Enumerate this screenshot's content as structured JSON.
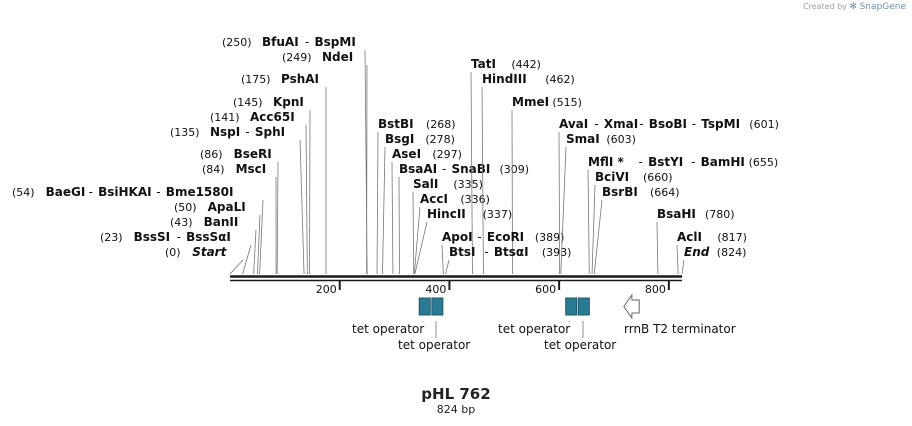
{
  "credit": {
    "prefix": "Created by",
    "brand": "SnapGene"
  },
  "plasmid": {
    "name": "pHL 762",
    "length_label": "824 bp"
  },
  "scale": {
    "length": 824,
    "ticks": [
      200,
      400,
      600,
      800
    ]
  },
  "enzyme_rows": [
    {
      "pos_label": "(250)",
      "sites": [
        250,
        249
      ],
      "names": [
        "BfuAI",
        "BspMI"
      ],
      "italic": false
    },
    {
      "pos_label": "(249)",
      "sites": [
        249
      ],
      "names": [
        "NdeI"
      ],
      "italic": false
    },
    {
      "pos_label": "(175)",
      "sites": [
        175
      ],
      "names": [
        "PshAI"
      ],
      "italic": false
    },
    {
      "pos_label": "(145)",
      "sites": [
        145
      ],
      "names": [
        "KpnI"
      ],
      "italic": false
    },
    {
      "pos_label": "(141)",
      "sites": [
        141
      ],
      "names": [
        "Acc65I"
      ],
      "italic": false
    },
    {
      "pos_label": "(135)",
      "sites": [
        135
      ],
      "names": [
        "NspI",
        "SphI"
      ],
      "italic": false
    },
    {
      "pos_label": "(86)",
      "sites": [
        86
      ],
      "names": [
        "BseRI"
      ],
      "italic": false
    },
    {
      "pos_label": "(84)",
      "sites": [
        84
      ],
      "names": [
        "MscI"
      ],
      "italic": false
    },
    {
      "pos_label": "(54)",
      "sites": [
        54
      ],
      "names": [
        "BaeGI",
        "BsiHKAI",
        "Bme1580I"
      ],
      "italic": false
    },
    {
      "pos_label": "(50)",
      "sites": [
        50
      ],
      "names": [
        "ApaLI"
      ],
      "italic": false
    },
    {
      "pos_label": "(43)",
      "sites": [
        43
      ],
      "names": [
        "BanII"
      ],
      "italic": false
    },
    {
      "pos_label": "(23)",
      "sites": [
        23
      ],
      "names": [
        "BssSI",
        "BssSαI"
      ],
      "italic": false
    },
    {
      "pos_label": "(0)",
      "sites": [
        0
      ],
      "names": [
        "Start"
      ],
      "italic": true
    },
    {
      "pos_label": "(268)",
      "sites": [
        268
      ],
      "names": [
        "BstBI"
      ],
      "italic": false
    },
    {
      "pos_label": "(278)",
      "sites": [
        278
      ],
      "names": [
        "BsgI"
      ],
      "italic": false
    },
    {
      "pos_label": "(297)",
      "sites": [
        297
      ],
      "names": [
        "AseI"
      ],
      "italic": false
    },
    {
      "pos_label": "(309)",
      "sites": [
        309
      ],
      "names": [
        "BsaAI",
        "SnaBI"
      ],
      "italic": false
    },
    {
      "pos_label": "(335)",
      "sites": [
        335
      ],
      "names": [
        "SalI"
      ],
      "italic": false
    },
    {
      "pos_label": "(336)",
      "sites": [
        336
      ],
      "names": [
        "AccI"
      ],
      "italic": false
    },
    {
      "pos_label": "(337)",
      "sites": [
        337
      ],
      "names": [
        "HincII"
      ],
      "italic": false
    },
    {
      "pos_label": "(442)",
      "sites": [
        442
      ],
      "names": [
        "TatI"
      ],
      "italic": false
    },
    {
      "pos_label": "(462)",
      "sites": [
        462
      ],
      "names": [
        "HindIII"
      ],
      "italic": false
    },
    {
      "pos_label": "(515)",
      "sites": [
        515
      ],
      "names": [
        "MmeI"
      ],
      "italic": false
    },
    {
      "pos_label": "(389)",
      "sites": [
        389
      ],
      "names": [
        "ApoI",
        "EcoRI"
      ],
      "italic": false
    },
    {
      "pos_label": "(393)",
      "sites": [
        393
      ],
      "names": [
        "BtsI",
        "BtsαI"
      ],
      "italic": false
    },
    {
      "pos_label": "(601)",
      "sites": [
        601
      ],
      "names": [
        "AvaI",
        "XmaI",
        "BsoBI",
        "TspMI"
      ],
      "italic": false
    },
    {
      "pos_label": "(603)",
      "sites": [
        603
      ],
      "names": [
        "SmaI"
      ],
      "italic": false
    },
    {
      "pos_label": "(655)",
      "sites": [
        655
      ],
      "names": [
        "MflI *",
        "BstYI",
        "BamHI"
      ],
      "italic": false
    },
    {
      "pos_label": "(660)",
      "sites": [
        660
      ],
      "names": [
        "BciVI"
      ],
      "italic": false
    },
    {
      "pos_label": "(664)",
      "sites": [
        664
      ],
      "names": [
        "BsrBI"
      ],
      "italic": false
    },
    {
      "pos_label": "(780)",
      "sites": [
        780
      ],
      "names": [
        "BsaHI"
      ],
      "italic": false
    },
    {
      "pos_label": "(817)",
      "sites": [
        817
      ],
      "names": [
        "AclI"
      ],
      "italic": false
    },
    {
      "pos_label": "(824)",
      "sites": [
        824
      ],
      "names": [
        "End"
      ],
      "italic": true
    }
  ],
  "features": [
    {
      "label": "tet operator",
      "kind": "box",
      "start": 345,
      "end": 365
    },
    {
      "label": "tet operator",
      "kind": "box",
      "start": 368,
      "end": 388
    },
    {
      "label": "tet operator",
      "kind": "box",
      "start": 612,
      "end": 632
    },
    {
      "label": "tet operator",
      "kind": "box",
      "start": 635,
      "end": 655
    },
    {
      "label": "rrnB T2 terminator",
      "kind": "arrow-left",
      "start": 718,
      "end": 746
    }
  ],
  "colors": {
    "feature_fill": "#2b7a93",
    "feature_stroke": "#1d5566",
    "line": "#777777",
    "backbone": "#1a1a1a"
  }
}
